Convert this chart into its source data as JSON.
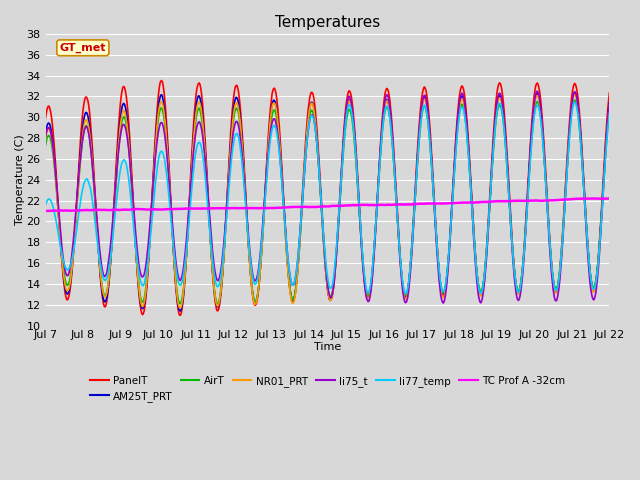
{
  "title": "Temperatures",
  "xlabel": "Time",
  "ylabel": "Temperature (C)",
  "ylim": [
    10,
    38
  ],
  "annotation_text": "GT_met",
  "series_names": [
    "PanelT",
    "AM25T_PRT",
    "AirT",
    "NR01_PRT",
    "li75_t",
    "li77_temp",
    "TC Prof A -32cm"
  ],
  "series_colors": [
    "#ff0000",
    "#0000cc",
    "#00bb00",
    "#ff9900",
    "#9900cc",
    "#00ccff",
    "#ff00ff"
  ],
  "series_linewidths": [
    1.2,
    1.2,
    1.2,
    1.2,
    1.2,
    1.2,
    1.8
  ],
  "background_color": "#d8d8d8",
  "plot_bg_color": "#d8d8d8",
  "grid_color": "#ffffff",
  "title_fontsize": 11,
  "label_fontsize": 8,
  "tick_fontsize": 8,
  "xtick_labels": [
    "Jul 7",
    "Jul 8",
    "Jul 9",
    "Jul 10",
    "Jul 11",
    "Jul 12",
    "Jul 13",
    "Jul 14",
    "Jul 15",
    "Jul 16",
    "Jul 17",
    "Jul 18",
    "Jul 19",
    "Jul 20",
    "Jul 21",
    "Jul 22"
  ],
  "n_points": 720,
  "figsize": [
    6.4,
    4.8
  ],
  "dpi": 100
}
